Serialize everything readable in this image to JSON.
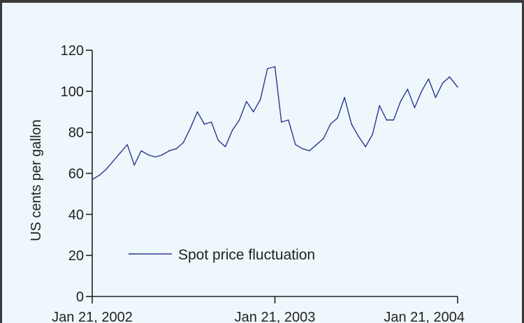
{
  "chart_data": {
    "type": "line",
    "title": "",
    "xlabel": "",
    "ylabel": "US cents per gallon",
    "ylim": [
      0,
      120
    ],
    "yticks": [
      0,
      20,
      40,
      60,
      80,
      100,
      120
    ],
    "xlim": [
      "2002-01-21",
      "2004-01-21"
    ],
    "xticks": [
      "Jan 21, 2002",
      "Jan 21, 2003",
      "Jan 21, 2004"
    ],
    "legend_position": "bottom-left",
    "grid": false,
    "series": [
      {
        "name": "Spot price fluctuation",
        "color": "#2e3592",
        "x": [
          "2002-01-21",
          "2002-02-04",
          "2002-02-18",
          "2002-03-04",
          "2002-03-18",
          "2002-04-01",
          "2002-04-15",
          "2002-04-29",
          "2002-05-13",
          "2002-05-27",
          "2002-06-10",
          "2002-06-24",
          "2002-07-08",
          "2002-07-22",
          "2002-08-05",
          "2002-08-19",
          "2002-09-02",
          "2002-09-16",
          "2002-09-30",
          "2002-10-14",
          "2002-10-28",
          "2002-11-11",
          "2002-11-25",
          "2002-12-09",
          "2002-12-23",
          "2003-01-06",
          "2003-01-21",
          "2003-02-03",
          "2003-02-17",
          "2003-03-03",
          "2003-03-17",
          "2003-03-31",
          "2003-04-14",
          "2003-04-28",
          "2003-05-12",
          "2003-05-26",
          "2003-06-09",
          "2003-06-23",
          "2003-07-07",
          "2003-07-21",
          "2003-08-04",
          "2003-08-18",
          "2003-09-01",
          "2003-09-15",
          "2003-09-29",
          "2003-10-13",
          "2003-10-27",
          "2003-11-10",
          "2003-11-24",
          "2003-12-08",
          "2003-12-22",
          "2004-01-05",
          "2004-01-21"
        ],
        "values": [
          57,
          59,
          62,
          66,
          70,
          74,
          64,
          71,
          69,
          68,
          69,
          71,
          72,
          75,
          82,
          90,
          84,
          85,
          76,
          73,
          81,
          86,
          95,
          90,
          96,
          111,
          112,
          85,
          86,
          74,
          72,
          71,
          74,
          77,
          84,
          87,
          97,
          84,
          78,
          73,
          79,
          93,
          86,
          86,
          95,
          101,
          92,
          100,
          106,
          97,
          104,
          107,
          102
        ]
      }
    ]
  }
}
